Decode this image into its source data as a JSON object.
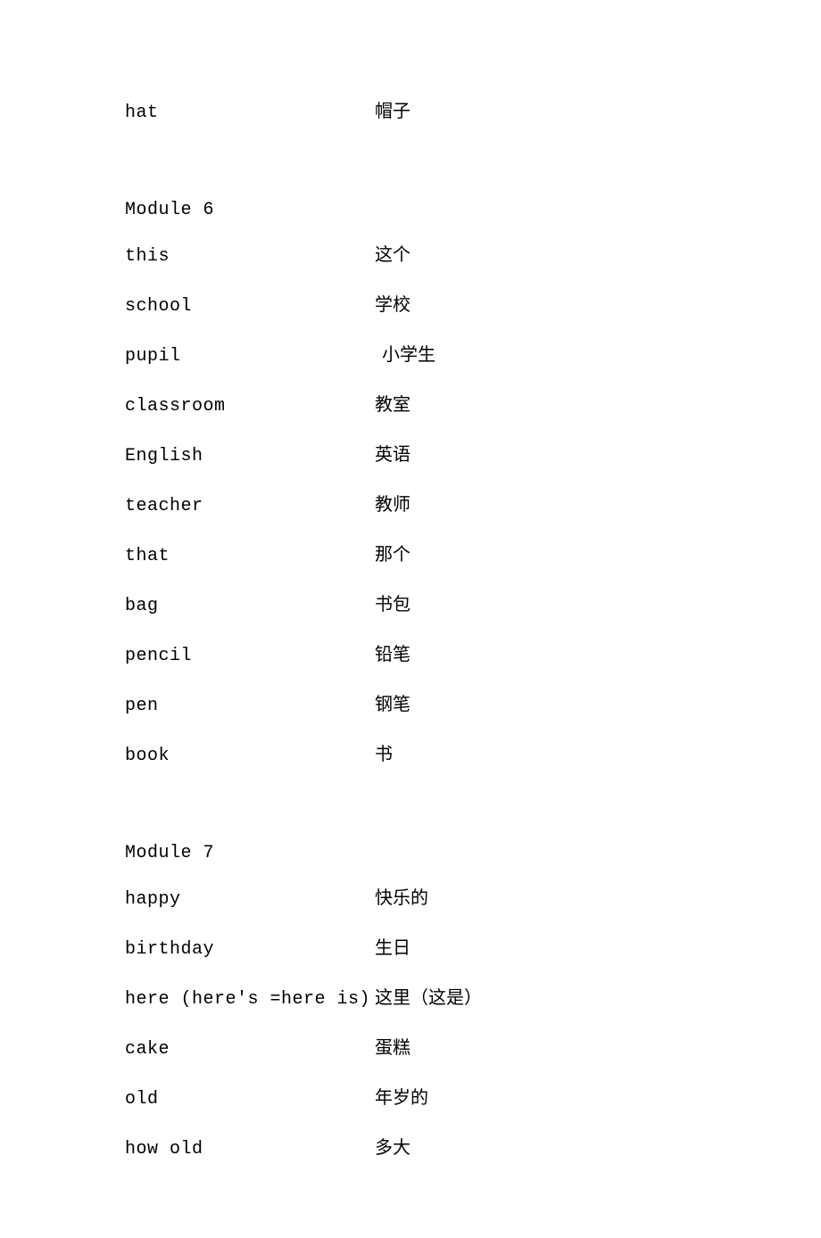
{
  "text_color": "#000000",
  "background_color": "#ffffff",
  "english_font_family": "Courier New",
  "chinese_font_family": "SimSun",
  "base_fontsize": 20,
  "top_row": {
    "english": "hat",
    "chinese": "帽子"
  },
  "modules": [
    {
      "heading": "Module  6",
      "rows": [
        {
          "english": "this",
          "chinese": "这个"
        },
        {
          "english": "school",
          "chinese": "学校"
        },
        {
          "english": "pupil",
          "chinese": "小学生",
          "chinese_indent": true
        },
        {
          "english": "classroom",
          "chinese": "教室"
        },
        {
          "english": "English",
          "chinese": "英语"
        },
        {
          "english": "teacher",
          "chinese": "教师"
        },
        {
          "english": "that",
          "chinese": "那个"
        },
        {
          "english": "bag",
          "chinese": "书包"
        },
        {
          "english": "pencil",
          "chinese": "铅笔"
        },
        {
          "english": "pen",
          "chinese": "钢笔"
        },
        {
          "english": "book",
          "chinese": "书"
        }
      ]
    },
    {
      "heading": "Module 7",
      "rows": [
        {
          "english": "happy",
          "chinese": "快乐的"
        },
        {
          "english": "birthday",
          "chinese": "生日"
        },
        {
          "english": "here  (here's =here is)",
          "chinese": "这里（这是）"
        },
        {
          "english": "cake",
          "chinese": "蛋糕"
        },
        {
          "english": "old",
          "chinese": "年岁的"
        },
        {
          "english": "how old",
          "chinese": "多大"
        }
      ]
    }
  ]
}
